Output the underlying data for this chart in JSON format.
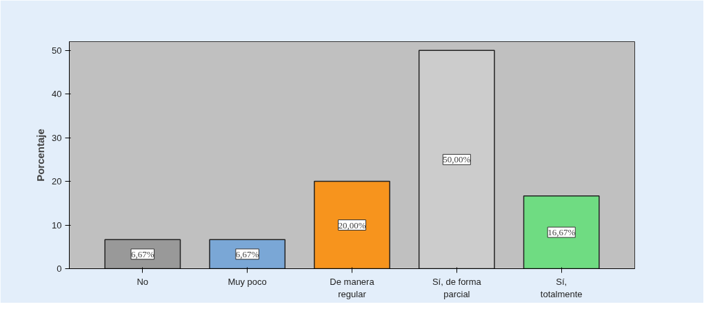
{
  "chart_data": {
    "type": "bar",
    "ylabel": "Porcentaje",
    "categories": [
      "No",
      "Muy poco",
      "De manera\nregular",
      "Sí, de forma\nparcial",
      "Sí,\ntotalmente"
    ],
    "values": [
      6.67,
      6.67,
      20.0,
      50.0,
      16.67
    ],
    "value_labels": [
      "6,67%",
      "6,67%",
      "20,00%",
      "50,00%",
      "16,67%"
    ],
    "colors": [
      "#999999",
      "#7aa7d6",
      "#f7941d",
      "#cccccc",
      "#6fdc82"
    ],
    "ylim": [
      0,
      52
    ],
    "yticks": [
      0,
      10,
      20,
      30,
      40,
      50
    ],
    "grid": false
  }
}
